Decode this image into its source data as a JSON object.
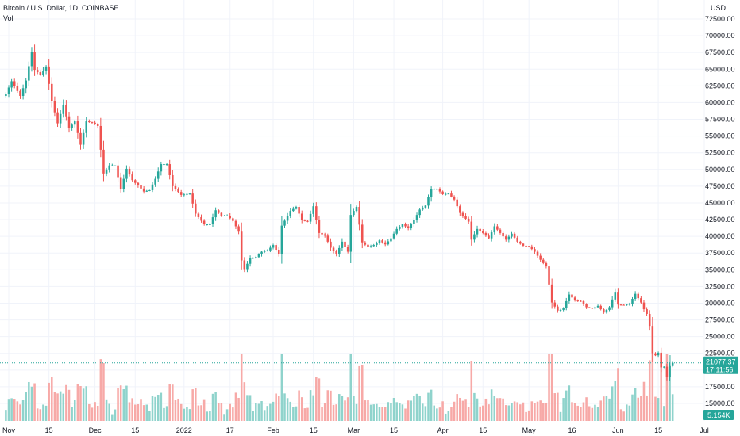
{
  "chart_data": {
    "type": "candlestick",
    "title": "Bitcoin / U.S. Dollar, 1D, COINBASE",
    "subtitle": "Vol",
    "currency_label": "USD",
    "y_ticks": [
      15000,
      17500,
      20000,
      22500,
      25000,
      27500,
      30000,
      32500,
      35000,
      37500,
      40000,
      42500,
      45000,
      47500,
      50000,
      52500,
      55000,
      57500,
      60000,
      62500,
      65000,
      67500,
      70000,
      72500
    ],
    "y_tick_labels": [
      "15000.00",
      "17500.00",
      "20000.00",
      "22500.00",
      "25000.00",
      "27500.00",
      "30000.00",
      "32500.00",
      "35000.00",
      "37500.00",
      "40000.00",
      "42500.00",
      "45000.00",
      "47500.00",
      "50000.00",
      "52500.00",
      "55000.00",
      "57500.00",
      "60000.00",
      "62500.00",
      "65000.00",
      "67500.00",
      "70000.00",
      "72500.00"
    ],
    "ylim": [
      13500,
      75000
    ],
    "x_ticks": [
      {
        "label": "Nov",
        "date": "2021-11-01"
      },
      {
        "label": "15",
        "date": "2021-11-15"
      },
      {
        "label": "Dec",
        "date": "2021-12-01"
      },
      {
        "label": "15",
        "date": "2021-12-15"
      },
      {
        "label": "2022",
        "date": "2022-01-01"
      },
      {
        "label": "17",
        "date": "2022-01-17"
      },
      {
        "label": "Feb",
        "date": "2022-02-01"
      },
      {
        "label": "15",
        "date": "2022-02-15"
      },
      {
        "label": "Mar",
        "date": "2022-03-01"
      },
      {
        "label": "15",
        "date": "2022-03-15"
      },
      {
        "label": "Apr",
        "date": "2022-04-01"
      },
      {
        "label": "15",
        "date": "2022-04-15"
      },
      {
        "label": "May",
        "date": "2022-05-01"
      },
      {
        "label": "16",
        "date": "2022-05-16"
      },
      {
        "label": "Jun",
        "date": "2022-06-01"
      },
      {
        "label": "15",
        "date": "2022-06-15"
      },
      {
        "label": "Jul",
        "date": "2022-07-01"
      }
    ],
    "date_range": [
      "2021-10-31",
      "2022-06-20"
    ],
    "last_price": "21077.37",
    "last_price_value": 21077.37,
    "countdown": "17:11:56",
    "volume_label": "5.154K",
    "colors": {
      "up": "#26a69a",
      "down": "#ef5350",
      "up_vol": "#8fd3cc",
      "down_vol": "#f7a9a7",
      "grid": "#f0f3fa",
      "price_line": "#26a69a",
      "text": "#131722"
    },
    "close_anchors": [
      {
        "date": "2021-10-31",
        "close": 61300
      },
      {
        "date": "2021-11-02",
        "close": 63200
      },
      {
        "date": "2021-11-05",
        "close": 61000
      },
      {
        "date": "2021-11-07",
        "close": 63300
      },
      {
        "date": "2021-11-09",
        "close": 67600
      },
      {
        "date": "2021-11-10",
        "close": 64900
      },
      {
        "date": "2021-11-12",
        "close": 64200
      },
      {
        "date": "2021-11-14",
        "close": 65400
      },
      {
        "date": "2021-11-16",
        "close": 60200
      },
      {
        "date": "2021-11-18",
        "close": 56900
      },
      {
        "date": "2021-11-20",
        "close": 59700
      },
      {
        "date": "2021-11-22",
        "close": 56200
      },
      {
        "date": "2021-11-24",
        "close": 57200
      },
      {
        "date": "2021-11-26",
        "close": 53700
      },
      {
        "date": "2021-11-28",
        "close": 57200
      },
      {
        "date": "2021-11-30",
        "close": 57000
      },
      {
        "date": "2021-12-02",
        "close": 56500
      },
      {
        "date": "2021-12-04",
        "close": 49400
      },
      {
        "date": "2021-12-06",
        "close": 50600
      },
      {
        "date": "2021-12-08",
        "close": 50600
      },
      {
        "date": "2021-12-10",
        "close": 47100
      },
      {
        "date": "2021-12-12",
        "close": 50100
      },
      {
        "date": "2021-12-14",
        "close": 48400
      },
      {
        "date": "2021-12-16",
        "close": 47600
      },
      {
        "date": "2021-12-18",
        "close": 46700
      },
      {
        "date": "2021-12-20",
        "close": 46900
      },
      {
        "date": "2021-12-22",
        "close": 48600
      },
      {
        "date": "2021-12-24",
        "close": 50800
      },
      {
        "date": "2021-12-26",
        "close": 50800
      },
      {
        "date": "2021-12-28",
        "close": 47500
      },
      {
        "date": "2021-12-31",
        "close": 46200
      },
      {
        "date": "2022-01-03",
        "close": 46400
      },
      {
        "date": "2022-01-05",
        "close": 43400
      },
      {
        "date": "2022-01-08",
        "close": 41800
      },
      {
        "date": "2022-01-10",
        "close": 41800
      },
      {
        "date": "2022-01-12",
        "close": 43900
      },
      {
        "date": "2022-01-14",
        "close": 43100
      },
      {
        "date": "2022-01-16",
        "close": 43100
      },
      {
        "date": "2022-01-18",
        "close": 42300
      },
      {
        "date": "2022-01-20",
        "close": 40700
      },
      {
        "date": "2022-01-21",
        "close": 36400
      },
      {
        "date": "2022-01-22",
        "close": 35100
      },
      {
        "date": "2022-01-24",
        "close": 36700
      },
      {
        "date": "2022-01-26",
        "close": 36900
      },
      {
        "date": "2022-01-28",
        "close": 37700
      },
      {
        "date": "2022-01-30",
        "close": 37900
      },
      {
        "date": "2022-02-01",
        "close": 38700
      },
      {
        "date": "2022-02-03",
        "close": 37300
      },
      {
        "date": "2022-02-04",
        "close": 41600
      },
      {
        "date": "2022-02-07",
        "close": 43800
      },
      {
        "date": "2022-02-09",
        "close": 44400
      },
      {
        "date": "2022-02-11",
        "close": 42400
      },
      {
        "date": "2022-02-13",
        "close": 42200
      },
      {
        "date": "2022-02-15",
        "close": 44500
      },
      {
        "date": "2022-02-17",
        "close": 40500
      },
      {
        "date": "2022-02-19",
        "close": 40100
      },
      {
        "date": "2022-02-21",
        "close": 38300
      },
      {
        "date": "2022-02-23",
        "close": 37300
      },
      {
        "date": "2022-02-25",
        "close": 39200
      },
      {
        "date": "2022-02-27",
        "close": 37700
      },
      {
        "date": "2022-02-28",
        "close": 43200
      },
      {
        "date": "2022-03-02",
        "close": 44400
      },
      {
        "date": "2022-03-04",
        "close": 39100
      },
      {
        "date": "2022-03-06",
        "close": 38400
      },
      {
        "date": "2022-03-08",
        "close": 38700
      },
      {
        "date": "2022-03-10",
        "close": 39400
      },
      {
        "date": "2022-03-12",
        "close": 38800
      },
      {
        "date": "2022-03-14",
        "close": 39700
      },
      {
        "date": "2022-03-16",
        "close": 41100
      },
      {
        "date": "2022-03-18",
        "close": 41800
      },
      {
        "date": "2022-03-20",
        "close": 41200
      },
      {
        "date": "2022-03-22",
        "close": 42400
      },
      {
        "date": "2022-03-24",
        "close": 44000
      },
      {
        "date": "2022-03-26",
        "close": 44600
      },
      {
        "date": "2022-03-28",
        "close": 47100
      },
      {
        "date": "2022-03-30",
        "close": 47100
      },
      {
        "date": "2022-04-01",
        "close": 46300
      },
      {
        "date": "2022-04-03",
        "close": 46400
      },
      {
        "date": "2022-04-05",
        "close": 45500
      },
      {
        "date": "2022-04-07",
        "close": 43500
      },
      {
        "date": "2022-04-10",
        "close": 42200
      },
      {
        "date": "2022-04-11",
        "close": 39500
      },
      {
        "date": "2022-04-13",
        "close": 41100
      },
      {
        "date": "2022-04-15",
        "close": 40500
      },
      {
        "date": "2022-04-17",
        "close": 39700
      },
      {
        "date": "2022-04-19",
        "close": 41500
      },
      {
        "date": "2022-04-21",
        "close": 40500
      },
      {
        "date": "2022-04-23",
        "close": 39500
      },
      {
        "date": "2022-04-25",
        "close": 40400
      },
      {
        "date": "2022-04-27",
        "close": 39200
      },
      {
        "date": "2022-04-29",
        "close": 38600
      },
      {
        "date": "2022-05-01",
        "close": 38500
      },
      {
        "date": "2022-05-03",
        "close": 37700
      },
      {
        "date": "2022-05-05",
        "close": 36500
      },
      {
        "date": "2022-05-07",
        "close": 35500
      },
      {
        "date": "2022-05-09",
        "close": 30100
      },
      {
        "date": "2022-05-11",
        "close": 28900
      },
      {
        "date": "2022-05-12",
        "close": 29000
      },
      {
        "date": "2022-05-13",
        "close": 29300
      },
      {
        "date": "2022-05-15",
        "close": 31300
      },
      {
        "date": "2022-05-17",
        "close": 30400
      },
      {
        "date": "2022-05-19",
        "close": 30300
      },
      {
        "date": "2022-05-21",
        "close": 29400
      },
      {
        "date": "2022-05-23",
        "close": 29200
      },
      {
        "date": "2022-05-25",
        "close": 29600
      },
      {
        "date": "2022-05-27",
        "close": 28600
      },
      {
        "date": "2022-05-29",
        "close": 29400
      },
      {
        "date": "2022-05-31",
        "close": 31700
      },
      {
        "date": "2022-06-01",
        "close": 29800
      },
      {
        "date": "2022-06-03",
        "close": 29700
      },
      {
        "date": "2022-06-05",
        "close": 29900
      },
      {
        "date": "2022-06-07",
        "close": 31400
      },
      {
        "date": "2022-06-09",
        "close": 30100
      },
      {
        "date": "2022-06-10",
        "close": 29100
      },
      {
        "date": "2022-06-11",
        "close": 28400
      },
      {
        "date": "2022-06-12",
        "close": 26600
      },
      {
        "date": "2022-06-13",
        "close": 22500
      },
      {
        "date": "2022-06-14",
        "close": 22200
      },
      {
        "date": "2022-06-15",
        "close": 22600
      },
      {
        "date": "2022-06-16",
        "close": 20400
      },
      {
        "date": "2022-06-17",
        "close": 20500
      },
      {
        "date": "2022-06-18",
        "close": 19000
      },
      {
        "date": "2022-06-19",
        "close": 20600
      },
      {
        "date": "2022-06-20",
        "close": 21077
      }
    ]
  }
}
